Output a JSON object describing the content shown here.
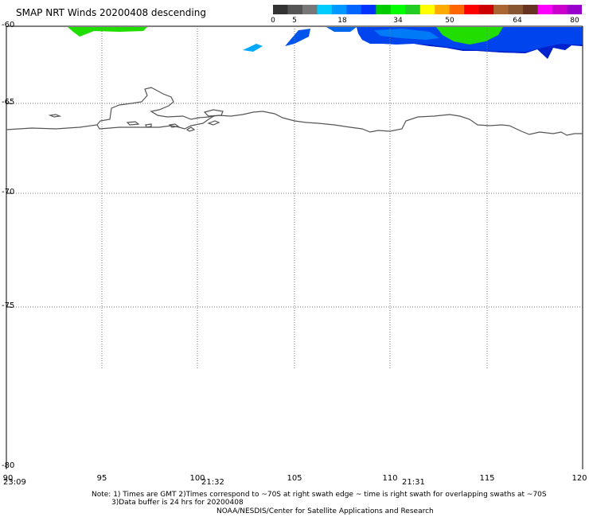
{
  "title": "SMAP NRT Winds  20200408 descending",
  "colorbar": {
    "labels": [
      "0",
      "5",
      "18",
      "34",
      "50",
      "64",
      "80"
    ],
    "colors": [
      "#333333",
      "#555555",
      "#777777",
      "#00ccff",
      "#0099ff",
      "#0066ff",
      "#0033ff",
      "#00cc00",
      "#00ff00",
      "#22cc22",
      "#ffff00",
      "#ffaa00",
      "#ff6600",
      "#ff0000",
      "#cc0000",
      "#aa6633",
      "#885533",
      "#663322",
      "#ff00ff",
      "#cc00cc",
      "#9900cc"
    ]
  },
  "map": {
    "lat_labels": [
      "-60",
      "-65",
      "-70",
      "-75",
      "-80"
    ],
    "lon_labels": [
      "90",
      "95",
      "100",
      "105",
      "110",
      "115",
      "120"
    ],
    "time_labels": [
      "23:09",
      "21:32",
      "21:31"
    ],
    "swath_colors": {
      "blue": "#0044ee",
      "cyan": "#00a8ff",
      "green": "#22dd00",
      "dark_blue": "#0022cc"
    }
  },
  "notes": {
    "line1": "Note: 1) Times are GMT 2)Times correspond to ~70S at right swath edge ~ time is right swath for overlapping swaths at ~70S",
    "line2": "3)Data buffer is 24 hrs for 20200408",
    "line3": "NOAA/NESDIS/Center for Satellite Applications and Research"
  }
}
